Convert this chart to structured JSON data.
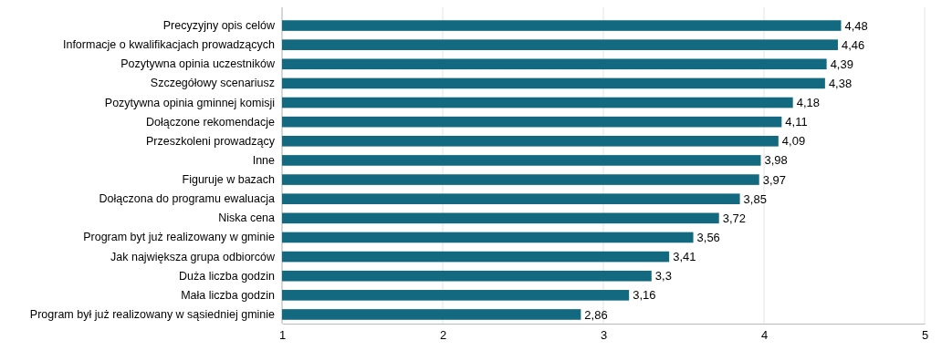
{
  "chart_data": {
    "type": "bar",
    "orientation": "horizontal",
    "categories": [
      "Precyzyjny opis celów",
      "Informacje o kwalifikacjach prowadzących",
      "Pozytywna opinia uczestników",
      "Szczegółowy scenariusz",
      "Pozytywna opinia gminnej komisji",
      "Dołączone rekomendacje",
      "Przeszkoleni prowadzący",
      "Inne",
      "Figuruje w bazach",
      "Dołączona do programu ewaluacja",
      "Niska cena",
      "Program byt już realizowany w gminie",
      "Jak największa grupa odbiorców",
      "Duża liczba godzin",
      "Mała liczba godzin",
      "Program był już realizowany w sąsiedniej gminie"
    ],
    "values": [
      4.48,
      4.46,
      4.39,
      4.38,
      4.18,
      4.11,
      4.09,
      3.98,
      3.97,
      3.85,
      3.72,
      3.56,
      3.41,
      3.3,
      3.16,
      2.86
    ],
    "value_labels": [
      "4,48",
      "4,46",
      "4,39",
      "4,38",
      "4,18",
      "4,11",
      "4,09",
      "3,98",
      "3,97",
      "3,85",
      "3,72",
      "3,56",
      "3,41",
      "3,3",
      "3,16",
      "2,86"
    ],
    "color": "#136a80",
    "xlim": [
      1,
      5
    ],
    "xticks": [
      1,
      2,
      3,
      4,
      5
    ],
    "grid": "x"
  }
}
